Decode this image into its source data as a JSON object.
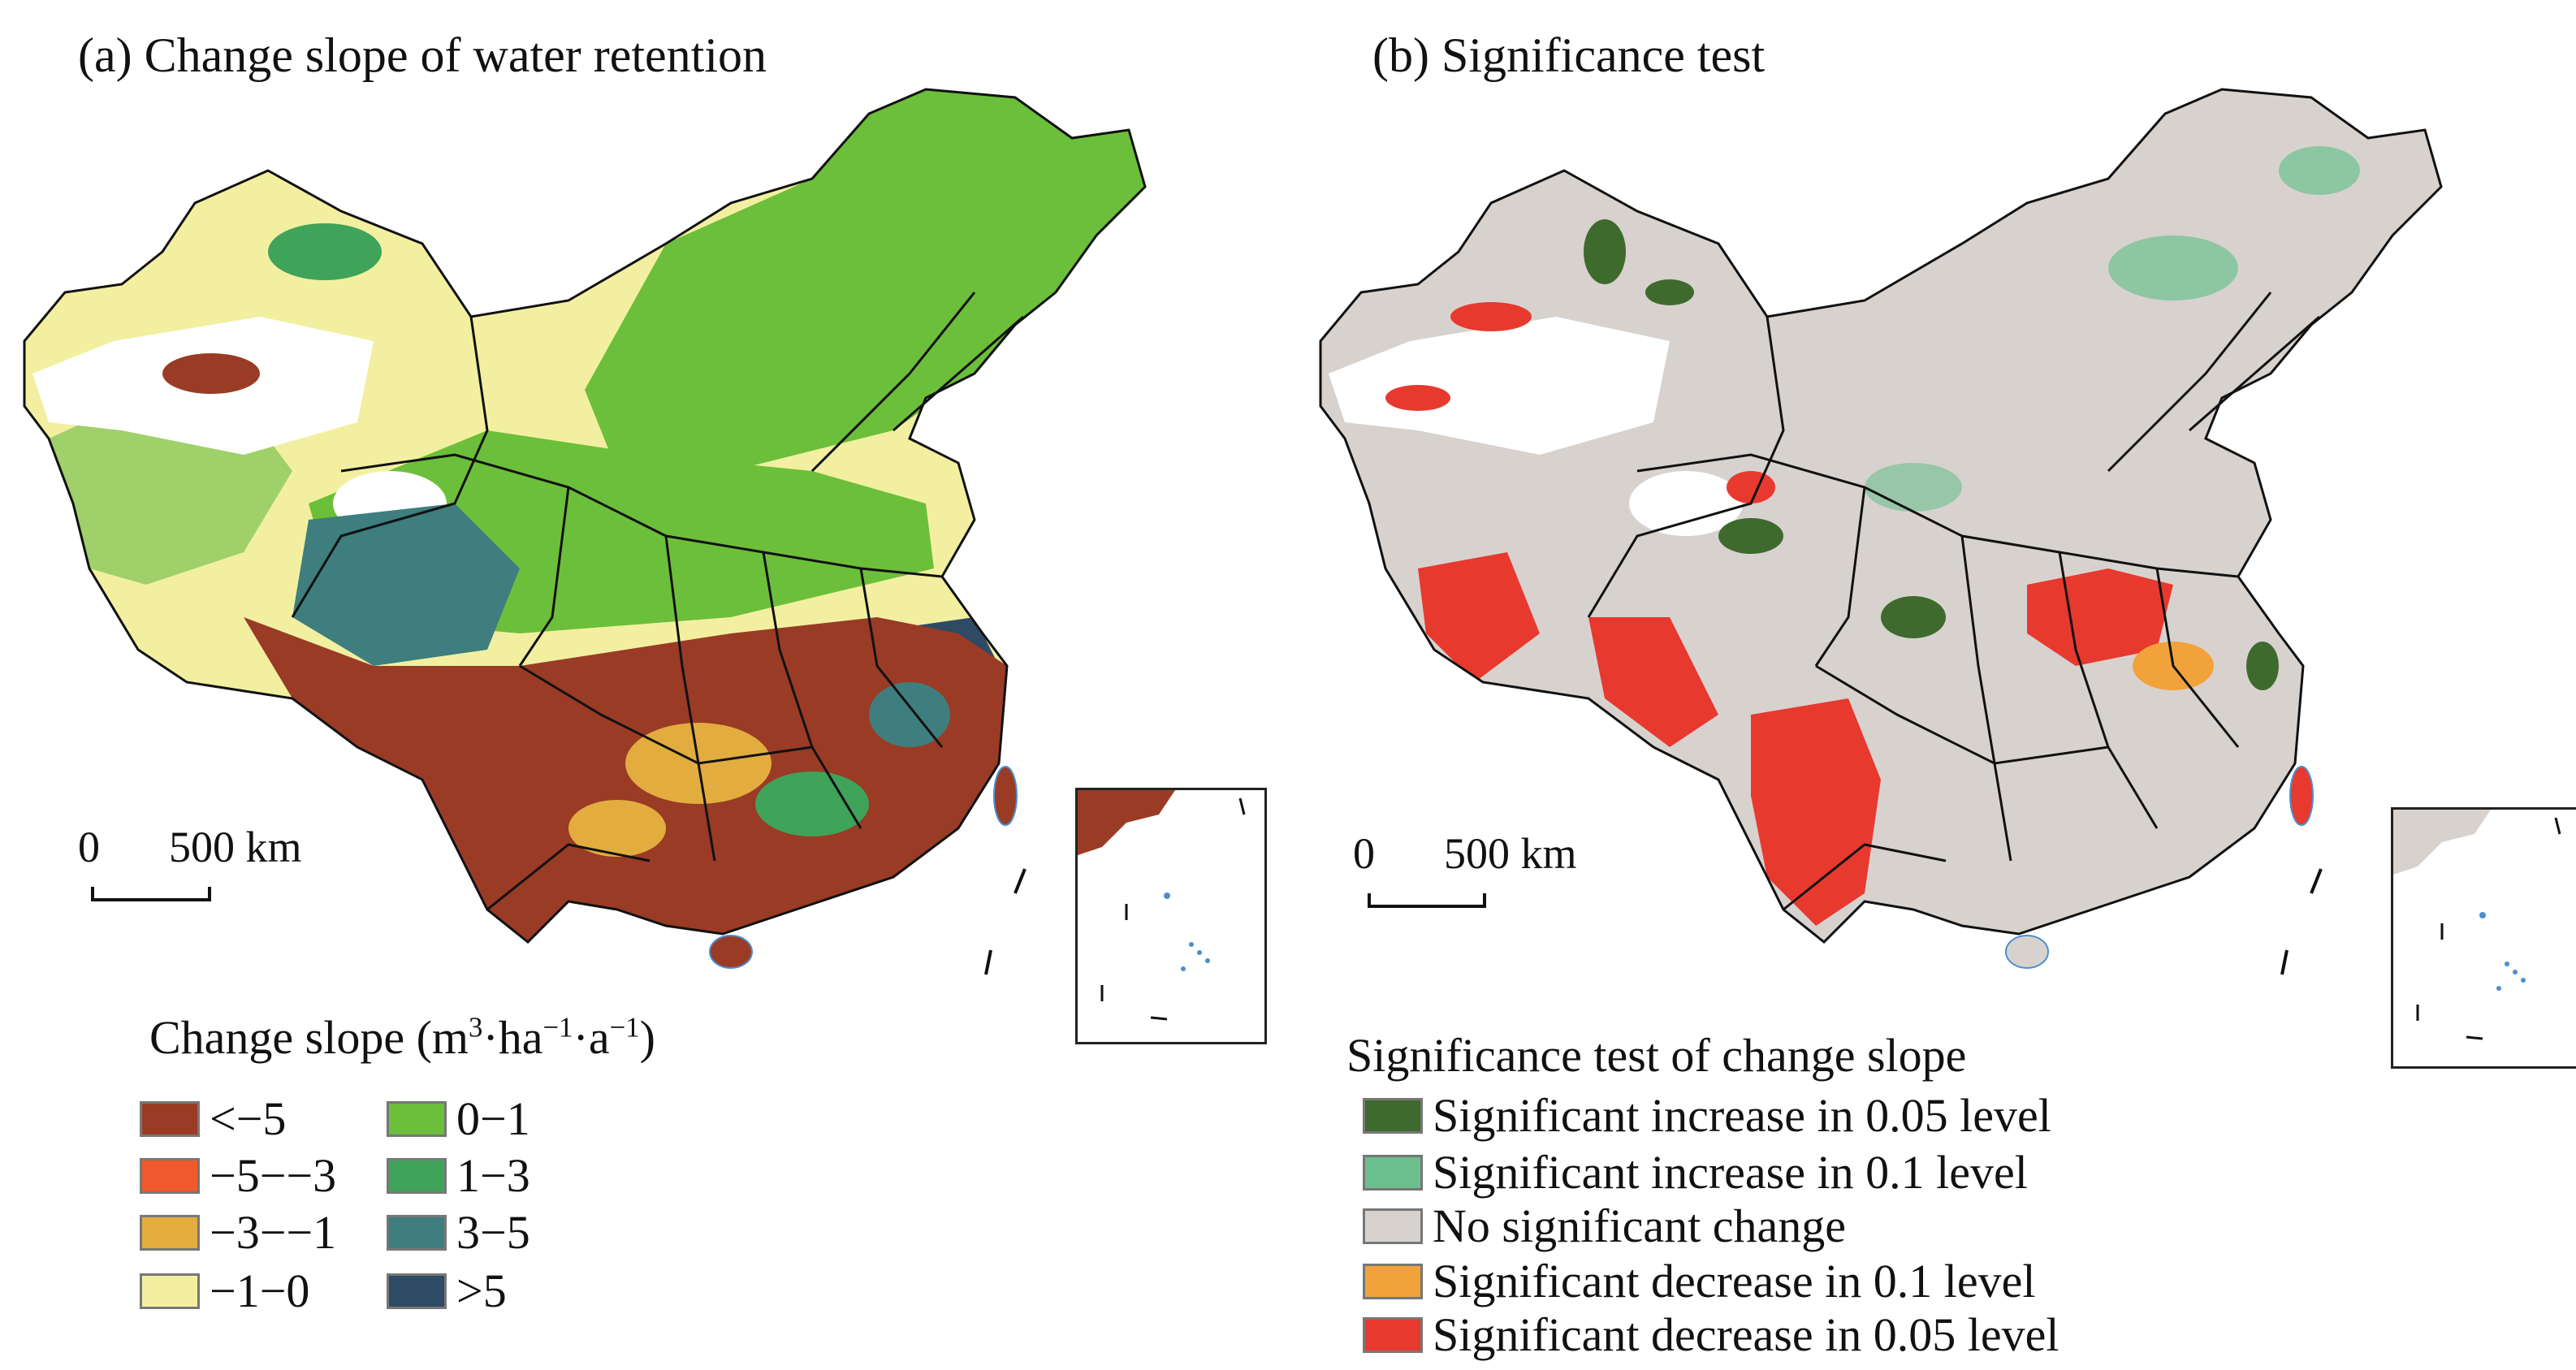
{
  "panel_a": {
    "title": "(a) Change slope of water retention",
    "scale": {
      "zero": "0",
      "label": "500 km"
    },
    "legend": {
      "title_main": "Change slope (m",
      "title_sup1": "3",
      "title_mid1": "·ha",
      "title_sup2": "−1",
      "title_mid2": "·a",
      "title_sup3": "−1",
      "title_end": ")",
      "items": [
        {
          "label": "<−5",
          "color": "#9a3b26"
        },
        {
          "label": "−5−−3",
          "color": "#ee5a2c"
        },
        {
          "label": "−3−−1",
          "color": "#e2ad3e"
        },
        {
          "label": "−1−0",
          "color": "#f2f0a0"
        },
        {
          "label": "0−1",
          "color": "#6cbf3a"
        },
        {
          "label": "1−3",
          "color": "#3fa35a"
        },
        {
          "label": "3−5",
          "color": "#3e7e7e"
        },
        {
          "label": ">5",
          "color": "#2e4a64"
        }
      ]
    }
  },
  "panel_b": {
    "title": "(b) Significance test",
    "scale": {
      "zero": "0",
      "label": "500 km"
    },
    "legend": {
      "title": "Significance test of change slope",
      "items": [
        {
          "label": "Significant increase in 0.05 level",
          "color": "#3f6a2e"
        },
        {
          "label": "Significant increase in 0.1 level",
          "color": "#6cc08e"
        },
        {
          "label": "No significant change",
          "color": "#d8d2cf"
        },
        {
          "label": "Significant decrease in 0.1 level",
          "color": "#f2a23a"
        },
        {
          "label": "Significant decrease in 0.05 level",
          "color": "#e8392f"
        }
      ]
    }
  }
}
